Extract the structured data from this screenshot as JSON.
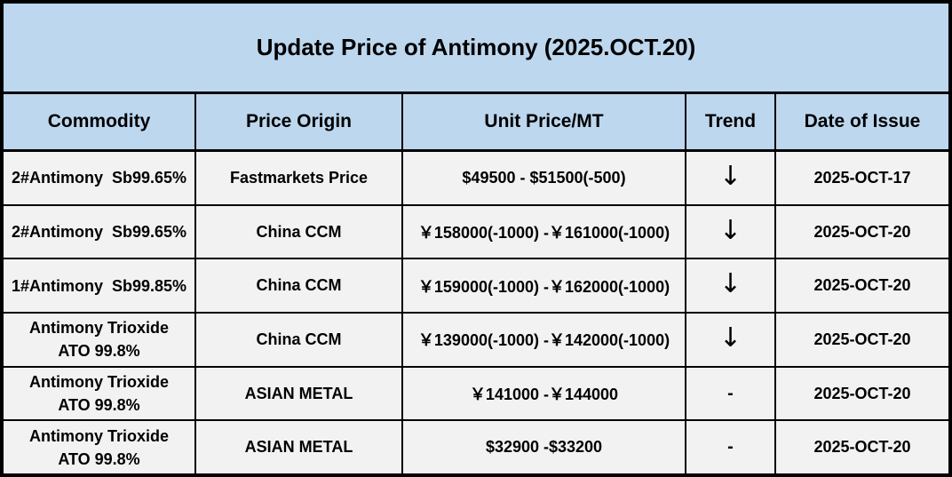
{
  "title": "Update Price of Antimony (2025.OCT.20)",
  "colors": {
    "header_bg": "#BDD7EE",
    "row_bg": "#F2F2F2",
    "border": "#000000",
    "text": "#000000"
  },
  "columns": {
    "commodity": "Commodity",
    "origin": "Price Origin",
    "price": "Unit Price/MT",
    "trend": "Trend",
    "date": "Date of Issue"
  },
  "icons": {
    "down_arrow": "↓",
    "flat_dash": "-"
  },
  "rows": [
    {
      "commodity": "2#Antimony  Sb99.65%",
      "origin": "Fastmarkets Price",
      "price": "$49500 - $51500(-500)",
      "trend": "↓",
      "date": "2025-OCT-17"
    },
    {
      "commodity": "2#Antimony  Sb99.65%",
      "origin": "China CCM",
      "price": "￥158000(-1000) -￥161000(-1000)",
      "trend": "↓",
      "date": "2025-OCT-20"
    },
    {
      "commodity": "1#Antimony  Sb99.85%",
      "origin": "China CCM",
      "price": "￥159000(-1000) -￥162000(-1000)",
      "trend": "↓",
      "date": "2025-OCT-20"
    },
    {
      "commodity": "Antimony Trioxide\nATO 99.8%",
      "origin": "China CCM",
      "price": "￥139000(-1000) -￥142000(-1000)",
      "trend": "↓",
      "date": "2025-OCT-20"
    },
    {
      "commodity": "Antimony Trioxide\nATO 99.8%",
      "origin": "ASIAN METAL",
      "price": "￥141000 -￥144000",
      "trend": "-",
      "date": "2025-OCT-20"
    },
    {
      "commodity": "Antimony Trioxide\nATO 99.8%",
      "origin": "ASIAN METAL",
      "price": "$32900 -$33200",
      "trend": "-",
      "date": "2025-OCT-20"
    }
  ]
}
